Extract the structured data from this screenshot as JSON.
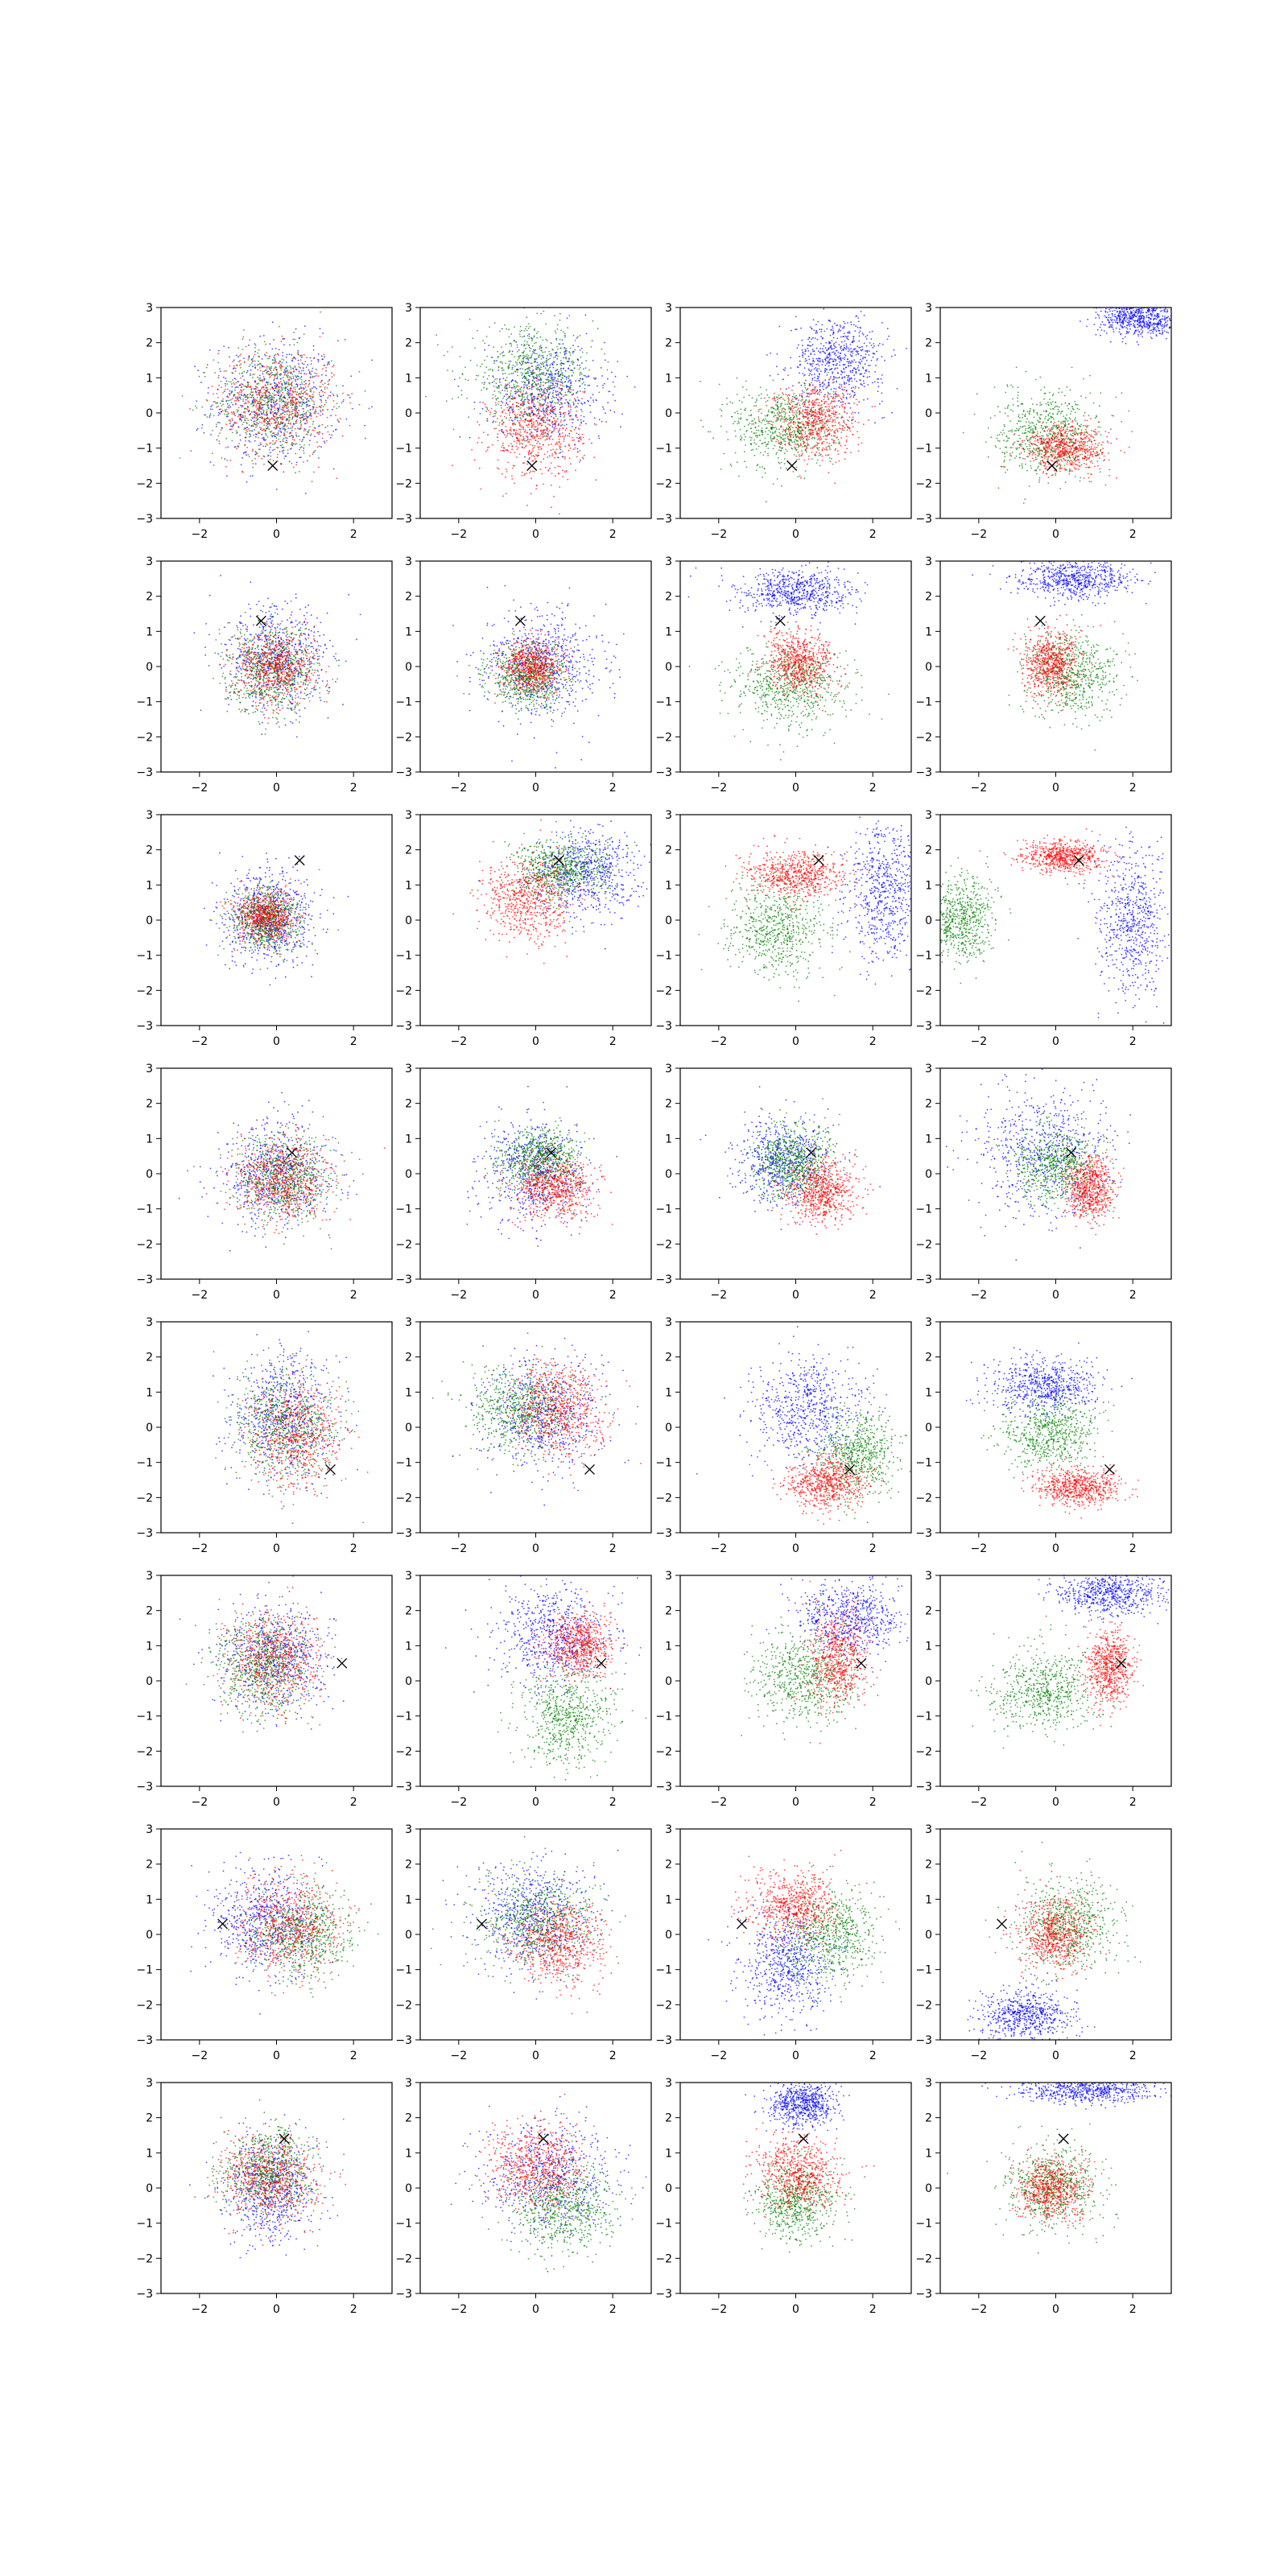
{
  "figure": {
    "rows": 8,
    "cols": 4,
    "layout": "grid of scatter subplots"
  },
  "chart_data": {
    "type": "scatter",
    "description_of_series": [
      "blue",
      "green",
      "red"
    ],
    "colors": {
      "blue": "#0000ff",
      "green": "#008000",
      "red": "#ff0000",
      "marker": "#000000",
      "axes": "#000000"
    },
    "xlim": [
      -3,
      3
    ],
    "ylim": [
      -3,
      3
    ],
    "xticks": [
      -2,
      0,
      2
    ],
    "yticks": [
      -3,
      -2,
      -1,
      0,
      1,
      2,
      3
    ],
    "xtick_labels": [
      "−2",
      "0",
      "2"
    ],
    "ytick_labels": [
      "−3",
      "−2",
      "−1",
      "0",
      "1",
      "2",
      "3"
    ],
    "grid": false,
    "marker_symbol": "x",
    "rows": [
      {
        "marker": [
          -0.1,
          -1.5
        ],
        "panels": [
          [
            {
              "color": "blue",
              "cx": 0.0,
              "cy": 0.3,
              "sx": 1.1,
              "sy": 1.2
            },
            {
              "color": "green",
              "cx": -0.1,
              "cy": 0.3,
              "sx": 1.0,
              "sy": 1.0
            },
            {
              "color": "red",
              "cx": 0.0,
              "cy": 0.3,
              "sx": 1.0,
              "sy": 1.0
            }
          ],
          [
            {
              "color": "blue",
              "cx": 0.3,
              "cy": 0.6,
              "sx": 1.0,
              "sy": 1.0
            },
            {
              "color": "green",
              "cx": -0.1,
              "cy": 1.1,
              "sx": 1.1,
              "sy": 0.9
            },
            {
              "color": "red",
              "cx": 0.0,
              "cy": -0.5,
              "sx": 0.8,
              "sy": 0.9
            }
          ],
          [
            {
              "color": "blue",
              "cx": 1.1,
              "cy": 1.5,
              "sx": 0.8,
              "sy": 0.8
            },
            {
              "color": "green",
              "cx": -0.3,
              "cy": -0.4,
              "sx": 0.9,
              "sy": 0.8
            },
            {
              "color": "red",
              "cx": 0.5,
              "cy": -0.2,
              "sx": 0.7,
              "sy": 0.7
            }
          ],
          [
            {
              "color": "blue",
              "cx": 2.2,
              "cy": 2.7,
              "sx": 0.7,
              "sy": 0.35
            },
            {
              "color": "green",
              "cx": -0.2,
              "cy": -0.6,
              "sx": 0.9,
              "sy": 0.8
            },
            {
              "color": "red",
              "cx": 0.3,
              "cy": -1.0,
              "sx": 0.7,
              "sy": 0.45
            }
          ]
        ]
      },
      {
        "marker": [
          -0.4,
          1.3
        ],
        "panels": [
          [
            {
              "color": "blue",
              "cx": 0.0,
              "cy": 0.2,
              "sx": 0.9,
              "sy": 1.0
            },
            {
              "color": "green",
              "cx": -0.1,
              "cy": -0.1,
              "sx": 0.8,
              "sy": 0.8
            },
            {
              "color": "red",
              "cx": 0.0,
              "cy": 0.0,
              "sx": 0.7,
              "sy": 0.7
            }
          ],
          [
            {
              "color": "blue",
              "cx": 0.2,
              "cy": 0.1,
              "sx": 1.0,
              "sy": 1.0
            },
            {
              "color": "green",
              "cx": -0.2,
              "cy": -0.3,
              "sx": 0.7,
              "sy": 0.6
            },
            {
              "color": "red",
              "cx": -0.1,
              "cy": 0.0,
              "sx": 0.5,
              "sy": 0.5
            }
          ],
          [
            {
              "color": "blue",
              "cx": 0.0,
              "cy": 2.1,
              "sx": 1.0,
              "sy": 0.45
            },
            {
              "color": "green",
              "cx": -0.1,
              "cy": -0.6,
              "sx": 1.0,
              "sy": 0.8
            },
            {
              "color": "red",
              "cx": 0.1,
              "cy": 0.1,
              "sx": 0.6,
              "sy": 0.6
            }
          ],
          [
            {
              "color": "blue",
              "cx": 0.5,
              "cy": 2.5,
              "sx": 1.0,
              "sy": 0.35
            },
            {
              "color": "green",
              "cx": 0.4,
              "cy": -0.2,
              "sx": 0.8,
              "sy": 0.8
            },
            {
              "color": "red",
              "cx": -0.1,
              "cy": 0.1,
              "sx": 0.5,
              "sy": 0.6
            }
          ]
        ]
      },
      {
        "marker": [
          0.6,
          1.7
        ],
        "panels": [
          [
            {
              "color": "blue",
              "cx": -0.2,
              "cy": 0.1,
              "sx": 0.8,
              "sy": 0.9
            },
            {
              "color": "green",
              "cx": -0.3,
              "cy": 0.0,
              "sx": 0.6,
              "sy": 0.6
            },
            {
              "color": "red",
              "cx": -0.3,
              "cy": 0.1,
              "sx": 0.5,
              "sy": 0.5
            }
          ],
          [
            {
              "color": "blue",
              "cx": 1.3,
              "cy": 1.3,
              "sx": 0.9,
              "sy": 0.8
            },
            {
              "color": "green",
              "cx": 0.6,
              "cy": 1.4,
              "sx": 0.8,
              "sy": 0.6
            },
            {
              "color": "red",
              "cx": -0.2,
              "cy": 0.6,
              "sx": 0.8,
              "sy": 0.8
            }
          ],
          [
            {
              "color": "blue",
              "cx": 2.3,
              "cy": 0.8,
              "sx": 0.6,
              "sy": 1.3
            },
            {
              "color": "green",
              "cx": -0.5,
              "cy": -0.2,
              "sx": 0.9,
              "sy": 0.9
            },
            {
              "color": "red",
              "cx": 0.0,
              "cy": 1.3,
              "sx": 0.8,
              "sy": 0.45
            }
          ],
          [
            {
              "color": "blue",
              "cx": 2.0,
              "cy": 0.0,
              "sx": 0.6,
              "sy": 1.4
            },
            {
              "color": "green",
              "cx": -2.5,
              "cy": 0.0,
              "sx": 0.6,
              "sy": 0.8
            },
            {
              "color": "red",
              "cx": 0.2,
              "cy": 1.8,
              "sx": 0.7,
              "sy": 0.3
            }
          ]
        ]
      },
      {
        "marker": [
          0.4,
          0.6
        ],
        "panels": [
          [
            {
              "color": "blue",
              "cx": 0.0,
              "cy": 0.0,
              "sx": 0.9,
              "sy": 1.0
            },
            {
              "color": "green",
              "cx": 0.2,
              "cy": -0.2,
              "sx": 0.8,
              "sy": 0.8
            },
            {
              "color": "red",
              "cx": 0.2,
              "cy": -0.2,
              "sx": 0.8,
              "sy": 0.8
            }
          ],
          [
            {
              "color": "blue",
              "cx": 0.0,
              "cy": 0.1,
              "sx": 0.9,
              "sy": 1.0
            },
            {
              "color": "green",
              "cx": 0.1,
              "cy": 0.4,
              "sx": 0.7,
              "sy": 0.6
            },
            {
              "color": "red",
              "cx": 0.5,
              "cy": -0.4,
              "sx": 0.7,
              "sy": 0.6
            }
          ],
          [
            {
              "color": "blue",
              "cx": -0.3,
              "cy": 0.4,
              "sx": 0.8,
              "sy": 0.8
            },
            {
              "color": "green",
              "cx": -0.1,
              "cy": 0.3,
              "sx": 0.7,
              "sy": 0.7
            },
            {
              "color": "red",
              "cx": 0.7,
              "cy": -0.5,
              "sx": 0.6,
              "sy": 0.6
            }
          ],
          [
            {
              "color": "blue",
              "cx": -0.3,
              "cy": 0.6,
              "sx": 1.2,
              "sy": 1.2
            },
            {
              "color": "green",
              "cx": 0.0,
              "cy": 0.3,
              "sx": 0.7,
              "sy": 0.7
            },
            {
              "color": "red",
              "cx": 0.9,
              "cy": -0.4,
              "sx": 0.4,
              "sy": 0.6
            }
          ]
        ]
      },
      {
        "marker": [
          1.4,
          -1.2
        ],
        "panels": [
          [
            {
              "color": "blue",
              "cx": 0.2,
              "cy": 0.4,
              "sx": 0.9,
              "sy": 1.1
            },
            {
              "color": "green",
              "cx": 0.2,
              "cy": 0.0,
              "sx": 0.9,
              "sy": 1.0
            },
            {
              "color": "red",
              "cx": 0.5,
              "cy": -0.2,
              "sx": 0.8,
              "sy": 1.0
            }
          ],
          [
            {
              "color": "blue",
              "cx": 0.2,
              "cy": 0.3,
              "sx": 1.0,
              "sy": 1.0
            },
            {
              "color": "green",
              "cx": -0.4,
              "cy": 0.5,
              "sx": 0.9,
              "sy": 0.8
            },
            {
              "color": "red",
              "cx": 0.6,
              "cy": 0.5,
              "sx": 0.8,
              "sy": 0.9
            }
          ],
          [
            {
              "color": "blue",
              "cx": 0.3,
              "cy": 0.5,
              "sx": 1.0,
              "sy": 1.0
            },
            {
              "color": "green",
              "cx": 1.6,
              "cy": -0.8,
              "sx": 0.7,
              "sy": 0.8
            },
            {
              "color": "red",
              "cx": 0.8,
              "cy": -1.6,
              "sx": 0.7,
              "sy": 0.5
            }
          ],
          [
            {
              "color": "blue",
              "cx": -0.3,
              "cy": 1.2,
              "sx": 0.9,
              "sy": 0.5
            },
            {
              "color": "green",
              "cx": -0.2,
              "cy": -0.2,
              "sx": 0.8,
              "sy": 0.7
            },
            {
              "color": "red",
              "cx": 0.6,
              "cy": -1.7,
              "sx": 0.7,
              "sy": 0.35
            }
          ]
        ]
      },
      {
        "marker": [
          1.7,
          0.5
        ],
        "panels": [
          [
            {
              "color": "blue",
              "cx": 0.0,
              "cy": 0.6,
              "sx": 0.9,
              "sy": 1.0
            },
            {
              "color": "green",
              "cx": -0.4,
              "cy": 0.4,
              "sx": 0.8,
              "sy": 0.9
            },
            {
              "color": "red",
              "cx": -0.1,
              "cy": 0.6,
              "sx": 0.8,
              "sy": 0.9
            }
          ],
          [
            {
              "color": "blue",
              "cx": 0.5,
              "cy": 1.3,
              "sx": 1.0,
              "sy": 0.9
            },
            {
              "color": "green",
              "cx": 0.8,
              "cy": -1.0,
              "sx": 0.8,
              "sy": 0.9
            },
            {
              "color": "red",
              "cx": 1.1,
              "cy": 1.0,
              "sx": 0.6,
              "sy": 0.6
            }
          ],
          [
            {
              "color": "blue",
              "cx": 1.4,
              "cy": 1.8,
              "sx": 0.9,
              "sy": 0.7
            },
            {
              "color": "green",
              "cx": 0.2,
              "cy": 0.1,
              "sx": 0.9,
              "sy": 0.8
            },
            {
              "color": "red",
              "cx": 1.1,
              "cy": 0.6,
              "sx": 0.5,
              "sy": 0.9
            }
          ],
          [
            {
              "color": "blue",
              "cx": 1.4,
              "cy": 2.5,
              "sx": 0.9,
              "sy": 0.4
            },
            {
              "color": "green",
              "cx": -0.3,
              "cy": -0.3,
              "sx": 0.9,
              "sy": 0.8
            },
            {
              "color": "red",
              "cx": 1.4,
              "cy": 0.4,
              "sx": 0.4,
              "sy": 0.7
            }
          ]
        ]
      },
      {
        "marker": [
          -1.4,
          0.3
        ],
        "panels": [
          [
            {
              "color": "blue",
              "cx": -0.3,
              "cy": 0.4,
              "sx": 0.9,
              "sy": 1.0
            },
            {
              "color": "green",
              "cx": 0.7,
              "cy": 0.0,
              "sx": 0.8,
              "sy": 0.9
            },
            {
              "color": "red",
              "cx": 0.3,
              "cy": 0.2,
              "sx": 0.9,
              "sy": 0.9
            }
          ],
          [
            {
              "color": "blue",
              "cx": -0.1,
              "cy": 0.6,
              "sx": 1.0,
              "sy": 1.0
            },
            {
              "color": "green",
              "cx": 0.0,
              "cy": 0.4,
              "sx": 1.0,
              "sy": 0.9
            },
            {
              "color": "red",
              "cx": 0.6,
              "cy": -0.2,
              "sx": 0.8,
              "sy": 0.8
            }
          ],
          [
            {
              "color": "blue",
              "cx": -0.2,
              "cy": -0.9,
              "sx": 0.8,
              "sy": 1.0
            },
            {
              "color": "green",
              "cx": 0.9,
              "cy": 0.0,
              "sx": 0.8,
              "sy": 0.9
            },
            {
              "color": "red",
              "cx": 0.0,
              "cy": 0.8,
              "sx": 0.8,
              "sy": 0.7
            }
          ],
          [
            {
              "color": "blue",
              "cx": -0.8,
              "cy": -2.3,
              "sx": 0.8,
              "sy": 0.5
            },
            {
              "color": "green",
              "cx": 0.3,
              "cy": 0.3,
              "sx": 0.9,
              "sy": 0.9
            },
            {
              "color": "red",
              "cx": 0.0,
              "cy": 0.0,
              "sx": 0.6,
              "sy": 0.7
            }
          ]
        ]
      },
      {
        "marker": [
          0.2,
          1.4
        ],
        "panels": [
          [
            {
              "color": "blue",
              "cx": -0.2,
              "cy": 0.0,
              "sx": 0.8,
              "sy": 1.0
            },
            {
              "color": "green",
              "cx": -0.2,
              "cy": 0.5,
              "sx": 0.8,
              "sy": 0.8
            },
            {
              "color": "red",
              "cx": -0.2,
              "cy": 0.3,
              "sx": 0.8,
              "sy": 0.8
            }
          ],
          [
            {
              "color": "blue",
              "cx": 0.4,
              "cy": 0.4,
              "sx": 1.1,
              "sy": 1.1
            },
            {
              "color": "green",
              "cx": 0.7,
              "cy": -0.6,
              "sx": 0.9,
              "sy": 0.8
            },
            {
              "color": "red",
              "cx": 0.0,
              "cy": 0.6,
              "sx": 0.8,
              "sy": 0.8
            }
          ],
          [
            {
              "color": "blue",
              "cx": 0.2,
              "cy": 2.4,
              "sx": 0.6,
              "sy": 0.4
            },
            {
              "color": "green",
              "cx": 0.0,
              "cy": -0.4,
              "sx": 0.7,
              "sy": 0.7
            },
            {
              "color": "red",
              "cx": 0.0,
              "cy": 0.4,
              "sx": 0.7,
              "sy": 0.7
            }
          ],
          [
            {
              "color": "blue",
              "cx": 0.8,
              "cy": 2.8,
              "sx": 1.2,
              "sy": 0.25
            },
            {
              "color": "green",
              "cx": 0.0,
              "cy": 0.0,
              "sx": 0.8,
              "sy": 0.8
            },
            {
              "color": "red",
              "cx": -0.1,
              "cy": 0.0,
              "sx": 0.6,
              "sy": 0.6
            }
          ]
        ]
      }
    ]
  }
}
